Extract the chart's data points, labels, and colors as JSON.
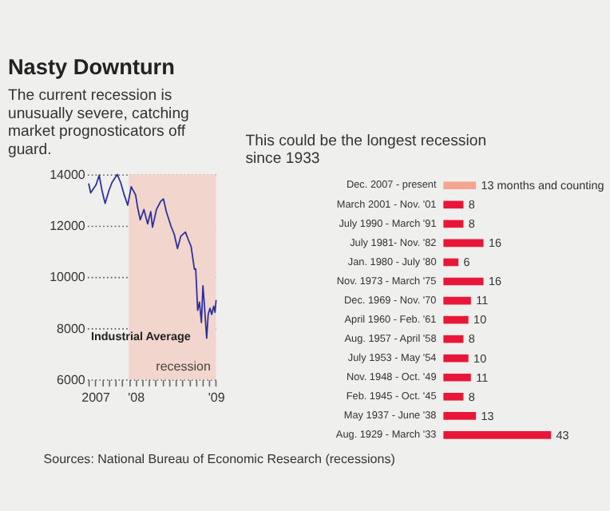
{
  "chart_data": [
    {
      "type": "line",
      "title": "Nasty Downturn",
      "subtitle": "The current recession is unusually severe, catching market prognosticators off guard.",
      "series": [
        {
          "name": "Industrial Average",
          "color": "#2b2f9e",
          "x": [
            "2007-06-01",
            "2007-06-10",
            "2007-07-05",
            "2007-07-19",
            "2007-08-01",
            "2007-08-15",
            "2007-09-01",
            "2007-09-15",
            "2007-10-09",
            "2007-10-25",
            "2007-11-10",
            "2007-11-26",
            "2007-12-12",
            "2008-01-01",
            "2008-01-10",
            "2008-01-22",
            "2008-02-08",
            "2008-02-25",
            "2008-03-10",
            "2008-03-18",
            "2008-04-05",
            "2008-04-25",
            "2008-05-07",
            "2008-05-20",
            "2008-06-10",
            "2008-06-25",
            "2008-07-10",
            "2008-07-25",
            "2008-08-15",
            "2008-08-28",
            "2008-09-10",
            "2008-09-25",
            "2008-10-01",
            "2008-10-10",
            "2008-10-18",
            "2008-10-27",
            "2008-11-03",
            "2008-11-10",
            "2008-11-20",
            "2008-11-27",
            "2008-12-05",
            "2008-12-13",
            "2008-12-22",
            "2008-12-28",
            "2009-01-02"
          ],
          "values": [
            13650,
            13280,
            13600,
            13970,
            13360,
            12870,
            13360,
            13680,
            14000,
            13680,
            13200,
            12800,
            13520,
            13200,
            12720,
            12230,
            12630,
            12070,
            12550,
            11940,
            12630,
            12960,
            13040,
            12550,
            11990,
            11670,
            11110,
            11590,
            11750,
            11460,
            11190,
            10300,
            10310,
            8700,
            9020,
            8220,
            9660,
            8860,
            7610,
            8540,
            8780,
            8540,
            8860,
            8620,
            9100
          ]
        }
      ],
      "xlim": [
        "2007-05-25",
        "2009-01-10"
      ],
      "xticks": [
        {
          "value": "2007-06-01",
          "label": null
        },
        {
          "value": "2007-07-01",
          "label": "2007"
        },
        {
          "value": "2007-08-01",
          "label": null
        },
        {
          "value": "2007-09-01",
          "label": null
        },
        {
          "value": "2007-10-01",
          "label": null
        },
        {
          "value": "2007-11-01",
          "label": null
        },
        {
          "value": "2007-12-01",
          "label": null
        },
        {
          "value": "2008-01-01",
          "label": "'08"
        },
        {
          "value": "2008-02-01",
          "label": null
        },
        {
          "value": "2008-03-01",
          "label": null
        },
        {
          "value": "2008-04-01",
          "label": null
        },
        {
          "value": "2008-05-01",
          "label": null
        },
        {
          "value": "2008-06-01",
          "label": null
        },
        {
          "value": "2008-07-01",
          "label": null
        },
        {
          "value": "2008-08-01",
          "label": null
        },
        {
          "value": "2008-09-01",
          "label": null
        },
        {
          "value": "2008-10-01",
          "label": null
        },
        {
          "value": "2008-11-01",
          "label": null
        },
        {
          "value": "2008-12-01",
          "label": null
        },
        {
          "value": "2009-01-01",
          "label": "'09"
        }
      ],
      "ylim": [
        6000,
        14000
      ],
      "yticks": [
        6000,
        8000,
        10000,
        12000,
        14000
      ],
      "grid": "y",
      "marker": "none",
      "line_style": "solid",
      "bands": [
        {
          "axis": "x",
          "from": "2007-12-01",
          "to": "2009-01-01",
          "label": "recession",
          "color": "#f2d5cc"
        }
      ]
    },
    {
      "type": "bar",
      "orientation": "horizontal",
      "title": "This could be the longest recession since 1933",
      "categories": [
        "Dec. 2007 - present",
        "March 2001 - Nov. '01",
        "July 1990 - March '91",
        "July 1981- Nov. '82",
        "Jan. 1980 - July '80",
        "Nov. 1973 - March '75",
        "Dec. 1969 - Nov. '70",
        "April 1960 - Feb. '61",
        "Aug. 1957 - April '58",
        "July 1953 - May '54",
        "Nov. 1948 - Oct. '49",
        "Feb. 1945 - Oct. '45",
        "May 1937 - June '38",
        "Aug. 1929 - March '33"
      ],
      "values": [
        13,
        8,
        8,
        16,
        6,
        16,
        11,
        10,
        8,
        10,
        11,
        8,
        13,
        43
      ],
      "colors": [
        "#f4a590",
        "#e8173a",
        "#e8173a",
        "#e8173a",
        "#e8173a",
        "#e8173a",
        "#e8173a",
        "#e8173a",
        "#e8173a",
        "#e8173a",
        "#e8173a",
        "#e8173a",
        "#e8173a",
        "#e8173a"
      ],
      "value_labels": [
        "13 months and counting",
        "8",
        "8",
        "16",
        "6",
        "16",
        "11",
        "10",
        "8",
        "10",
        "11",
        "8",
        "13",
        "43"
      ],
      "tick_labels": "y",
      "annotations": [
        "Sources: National Bureau of Economic Research (recessions)"
      ]
    }
  ]
}
